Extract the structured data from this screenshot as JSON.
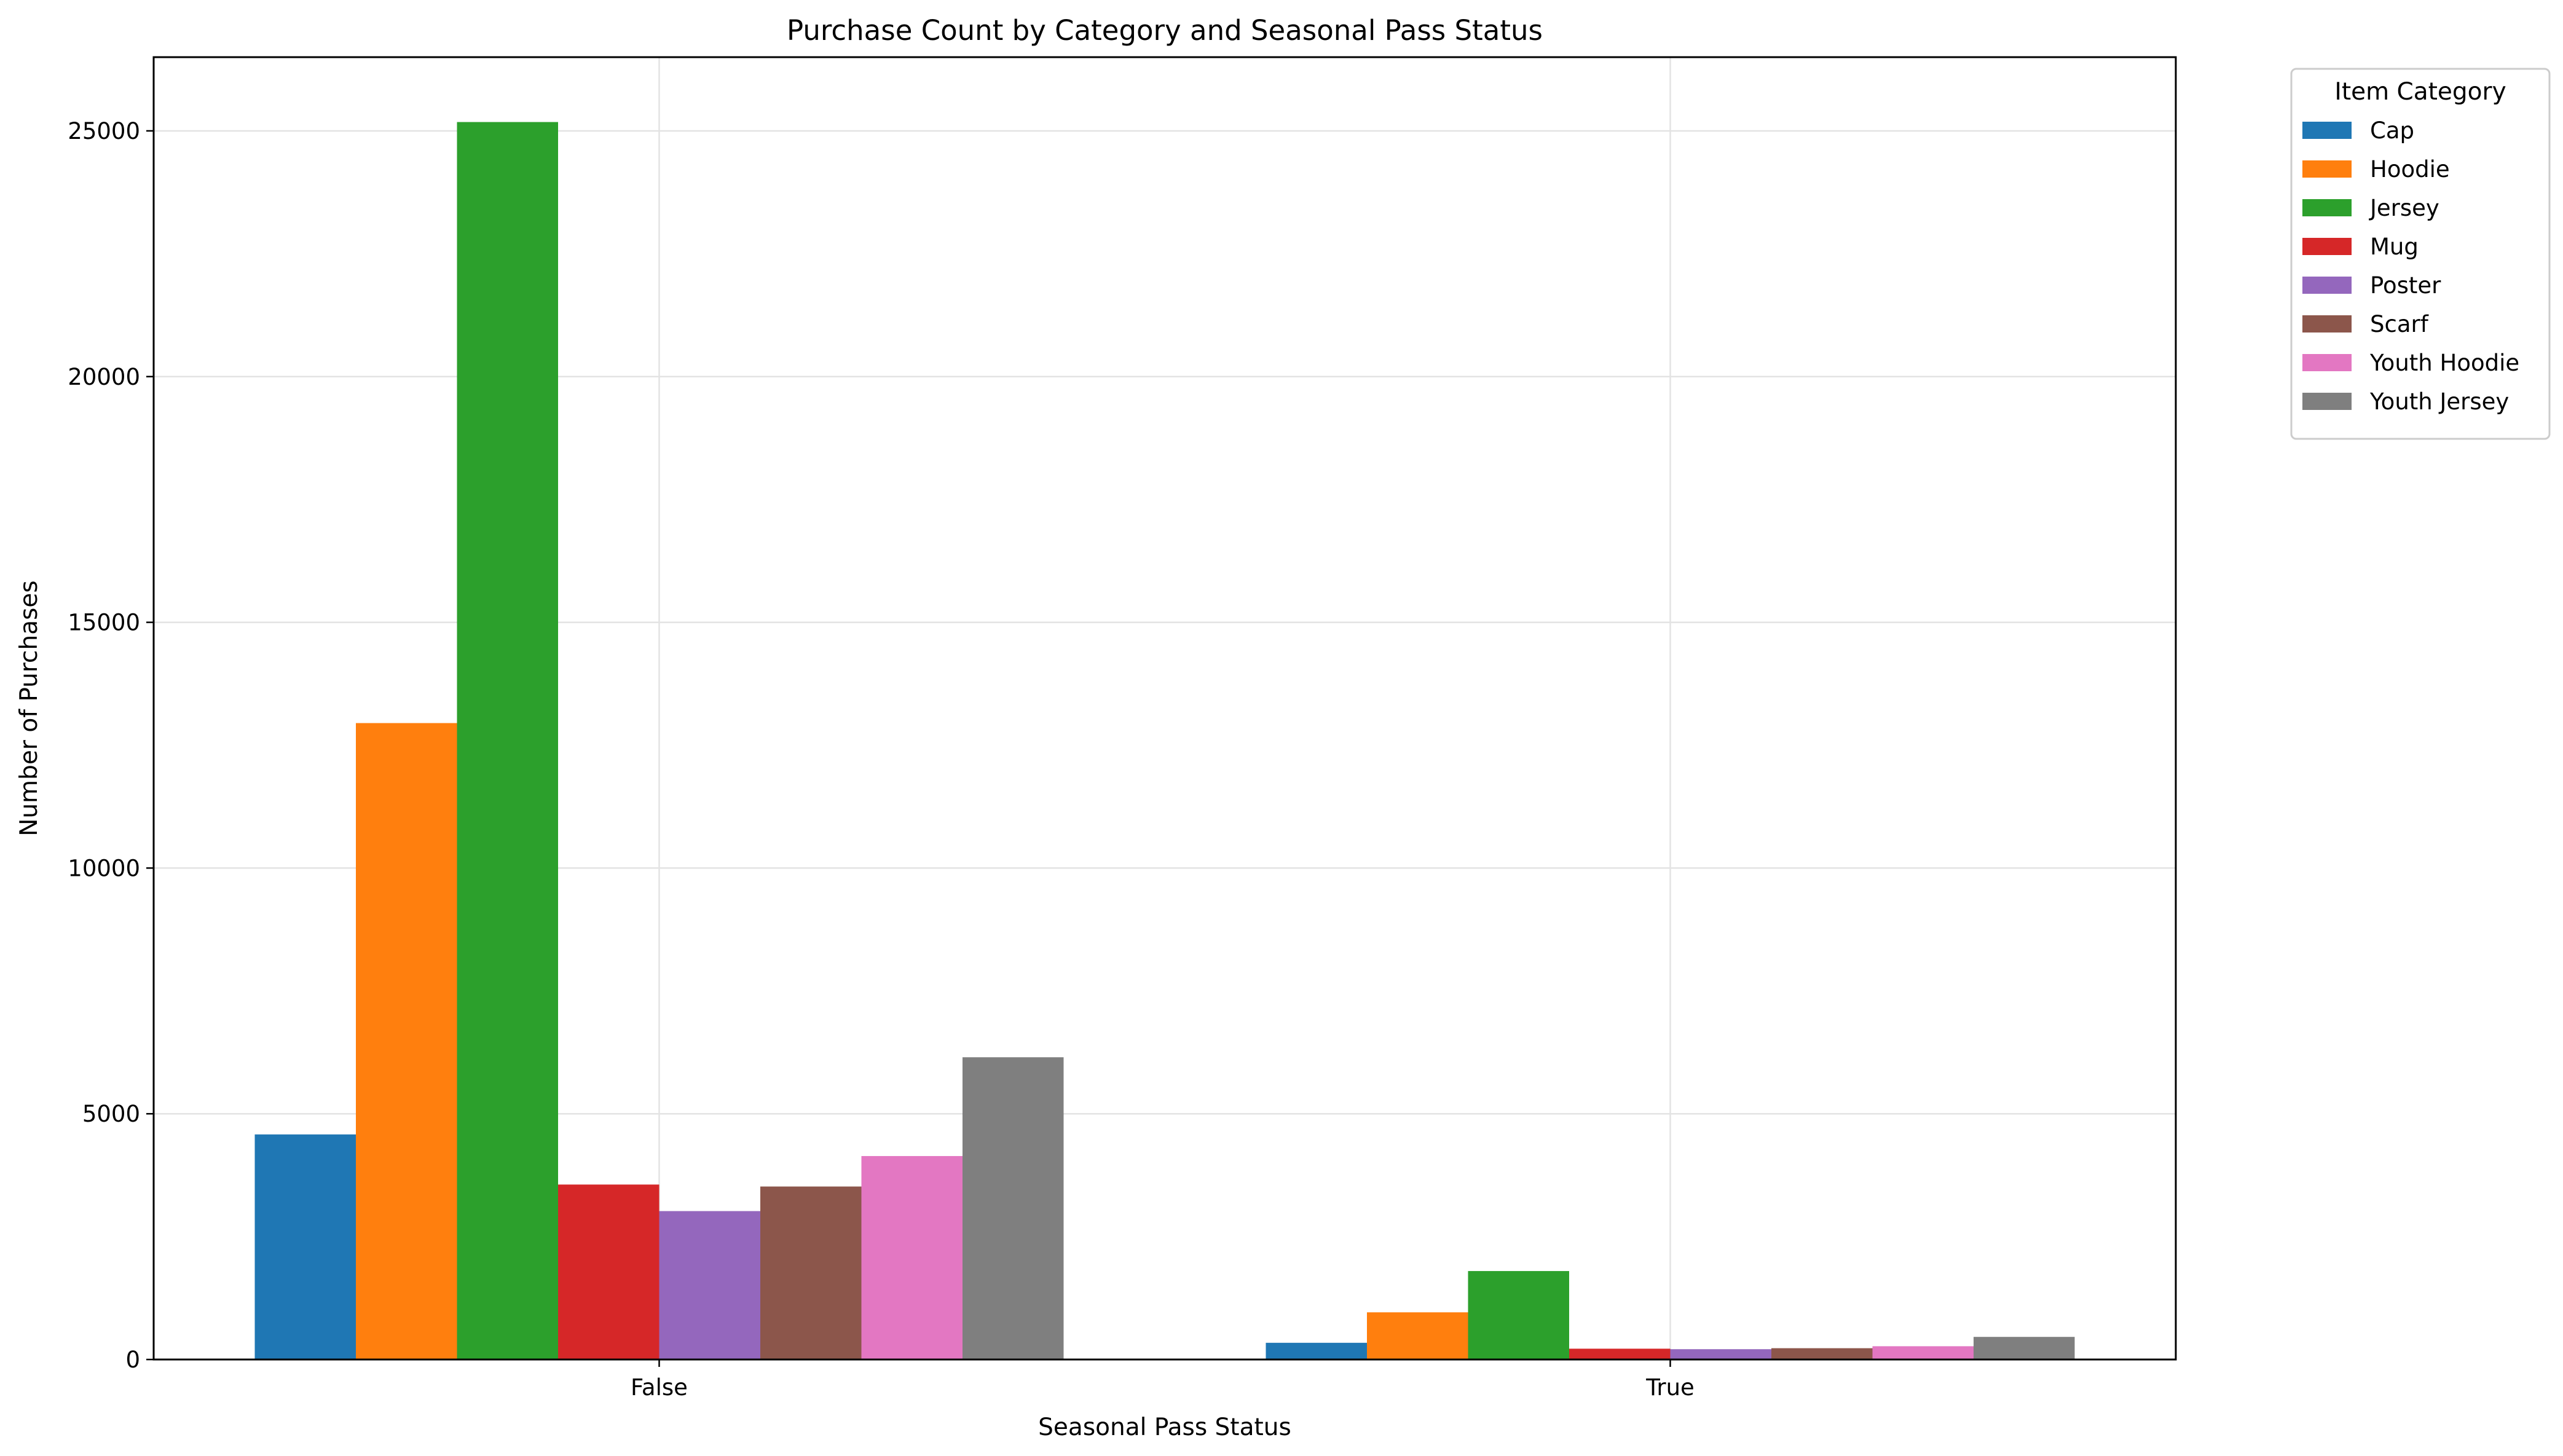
{
  "chart_data": {
    "type": "bar",
    "title": "Purchase Count by Category and Seasonal Pass Status",
    "xlabel": "Seasonal Pass Status",
    "ylabel": "Number of Purchases",
    "categories": [
      "False",
      "True"
    ],
    "ylim": [
      0,
      26500
    ],
    "yticks": [
      0,
      5000,
      10000,
      15000,
      20000,
      25000
    ],
    "grid": true,
    "legend": {
      "title": "Item Category",
      "placement": "outside-top-right"
    },
    "series": [
      {
        "name": "Cap",
        "color": "#1f77b4",
        "values": [
          4580,
          340
        ]
      },
      {
        "name": "Hoodie",
        "color": "#ff7f0e",
        "values": [
          12950,
          960
        ]
      },
      {
        "name": "Jersey",
        "color": "#2ca02c",
        "values": [
          25180,
          1800
        ]
      },
      {
        "name": "Mug",
        "color": "#d62728",
        "values": [
          3560,
          220
        ]
      },
      {
        "name": "Poster",
        "color": "#9467bd",
        "values": [
          3020,
          210
        ]
      },
      {
        "name": "Scarf",
        "color": "#8c564b",
        "values": [
          3520,
          230
        ]
      },
      {
        "name": "Youth Hoodie",
        "color": "#e377c2",
        "values": [
          4140,
          270
        ]
      },
      {
        "name": "Youth Jersey",
        "color": "#7f7f7f",
        "values": [
          6150,
          460
        ]
      }
    ]
  }
}
